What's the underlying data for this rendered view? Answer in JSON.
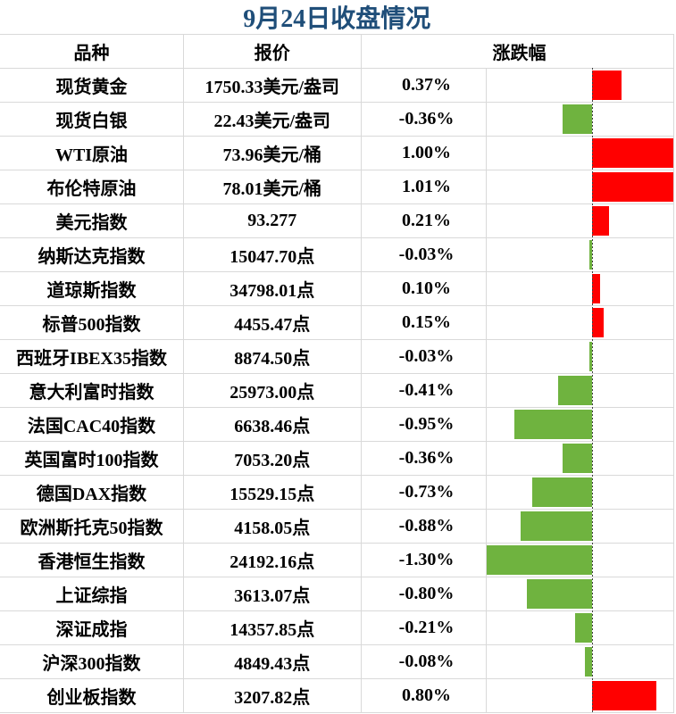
{
  "title": {
    "text": "9月24日收盘情况"
  },
  "colors": {
    "title_text": "#1F4E79",
    "gridline": "#D9D9D9",
    "body_text": "#000000",
    "positive_bar": "#FF0000",
    "negative_bar": "#6FB33F"
  },
  "table": {
    "headers": {
      "variety": "品种",
      "quote": "报价",
      "change": "涨跌幅"
    },
    "rows": [
      {
        "variety": "现货黄金",
        "quote": "1750.33美元/盎司",
        "change": "0.37%",
        "change_value": 0.37
      },
      {
        "variety": "现货白银",
        "quote": "22.43美元/盎司",
        "change": "-0.36%",
        "change_value": -0.36
      },
      {
        "variety": "WTI原油",
        "quote": "73.96美元/桶",
        "change": "1.00%",
        "change_value": 1.0
      },
      {
        "variety": "布伦特原油",
        "quote": "78.01美元/桶",
        "change": "1.01%",
        "change_value": 1.01
      },
      {
        "variety": "美元指数",
        "quote": "93.277",
        "change": "0.21%",
        "change_value": 0.21
      },
      {
        "variety": "纳斯达克指数",
        "quote": "15047.70点",
        "change": "-0.03%",
        "change_value": -0.03
      },
      {
        "variety": "道琼斯指数",
        "quote": "34798.01点",
        "change": "0.10%",
        "change_value": 0.1
      },
      {
        "variety": "标普500指数",
        "quote": "4455.47点",
        "change": "0.15%",
        "change_value": 0.15
      },
      {
        "variety": "西班牙IBEX35指数",
        "quote": "8874.50点",
        "change": "-0.03%",
        "change_value": -0.03
      },
      {
        "variety": "意大利富时指数",
        "quote": "25973.00点",
        "change": "-0.41%",
        "change_value": -0.41
      },
      {
        "variety": "法国CAC40指数",
        "quote": "6638.46点",
        "change": "-0.95%",
        "change_value": -0.95
      },
      {
        "variety": "英国富时100指数",
        "quote": "7053.20点",
        "change": "-0.36%",
        "change_value": -0.36
      },
      {
        "variety": "德国DAX指数",
        "quote": "15529.15点",
        "change": "-0.73%",
        "change_value": -0.73
      },
      {
        "variety": "欧洲斯托克50指数",
        "quote": "4158.05点",
        "change": "-0.88%",
        "change_value": -0.88
      },
      {
        "variety": "香港恒生指数",
        "quote": "24192.16点",
        "change": "-1.30%",
        "change_value": -1.3
      },
      {
        "variety": "上证综指",
        "quote": "3613.07点",
        "change": "-0.80%",
        "change_value": -0.8
      },
      {
        "variety": "深证成指",
        "quote": "14357.85点",
        "change": "-0.21%",
        "change_value": -0.21
      },
      {
        "variety": "沪深300指数",
        "quote": "4849.43点",
        "change": "-0.08%",
        "change_value": -0.08
      },
      {
        "variety": "创业板指数",
        "quote": "3207.82点",
        "change": "0.80%",
        "change_value": 0.8
      }
    ]
  },
  "chart_data": {
    "type": "bar",
    "orientation": "horizontal",
    "title": "9月24日收盘情况",
    "categories": [
      "现货黄金",
      "现货白银",
      "WTI原油",
      "布伦特原油",
      "美元指数",
      "纳斯达克指数",
      "道琼斯指数",
      "标普500指数",
      "西班牙IBEX35指数",
      "意大利富时指数",
      "法国CAC40指数",
      "英国富时100指数",
      "德国DAX指数",
      "欧洲斯托克50指数",
      "香港恒生指数",
      "上证综指",
      "深证成指",
      "沪深300指数",
      "创业板指数"
    ],
    "values": [
      0.37,
      -0.36,
      1.0,
      1.01,
      0.21,
      -0.03,
      0.1,
      0.15,
      -0.03,
      -0.41,
      -0.95,
      -0.36,
      -0.73,
      -0.88,
      -1.3,
      -0.8,
      -0.21,
      -0.08,
      0.8
    ],
    "series_label": "涨跌幅",
    "unit": "%",
    "xlim": [
      -1.3,
      1.01
    ],
    "positive_color": "#FF0000",
    "negative_color": "#6FB33F",
    "zero_axis": "dashed",
    "legend": false,
    "grid": true
  }
}
